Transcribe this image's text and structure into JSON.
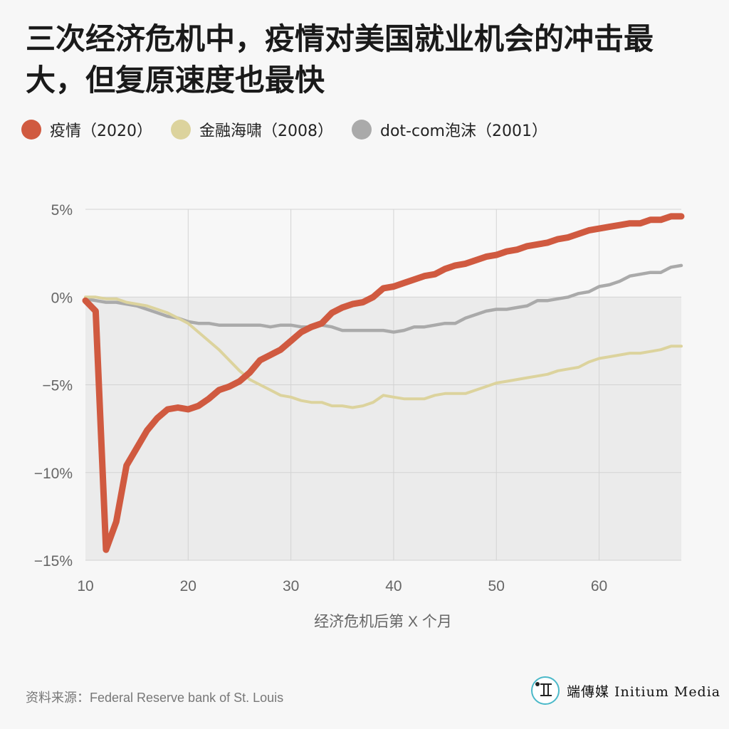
{
  "title": "三次经济危机中，疫情对美国就业机会的冲击最大，但复原速度也最快",
  "source": "资料来源：Federal Reserve bank of St. Louis",
  "logo": {
    "text": "端傳媒 Initium Media"
  },
  "chart_data": {
    "type": "line",
    "xlabel": "经济危机后第 X 个月",
    "ylabel": "",
    "xlim": [
      10,
      68
    ],
    "ylim": [
      -15,
      5
    ],
    "x_ticks": [
      "10",
      "20",
      "30",
      "40",
      "50",
      "60"
    ],
    "y_ticks": [
      "5%",
      "0%",
      "-5%",
      "-10%",
      "-15%"
    ],
    "grid": true,
    "legend_position": "top",
    "series": [
      {
        "name": "疫情（2020）",
        "color": "#d05a40",
        "x": [
          10,
          11,
          12,
          13,
          14,
          15,
          16,
          17,
          18,
          19,
          20,
          21,
          22,
          23,
          24,
          25,
          26,
          27,
          28,
          29,
          30,
          31,
          32,
          33,
          34,
          35,
          36,
          37,
          38,
          39,
          40,
          41,
          42,
          43,
          44,
          45,
          46,
          47,
          48,
          49,
          50,
          51,
          52,
          53,
          54,
          55,
          56,
          57,
          58,
          59,
          60,
          61,
          62,
          63,
          64,
          65,
          66,
          67,
          68
        ],
        "values": [
          -0.2,
          -0.8,
          -14.4,
          -12.8,
          -9.6,
          -8.6,
          -7.6,
          -6.9,
          -6.4,
          -6.3,
          -6.4,
          -6.2,
          -5.8,
          -5.3,
          -5.1,
          -4.8,
          -4.3,
          -3.6,
          -3.3,
          -3.0,
          -2.5,
          -2.0,
          -1.7,
          -1.5,
          -0.9,
          -0.6,
          -0.4,
          -0.3,
          0.0,
          0.5,
          0.6,
          0.8,
          1.0,
          1.2,
          1.3,
          1.6,
          1.8,
          1.9,
          2.1,
          2.3,
          2.4,
          2.6,
          2.7,
          2.9,
          3.0,
          3.1,
          3.3,
          3.4,
          3.6,
          3.8,
          3.9,
          4.0,
          4.1,
          4.2,
          4.2,
          4.4,
          4.4,
          4.6,
          4.6
        ]
      },
      {
        "name": "金融海啸（2008）",
        "color": "#dcd39d",
        "x": [
          10,
          11,
          12,
          13,
          14,
          15,
          16,
          17,
          18,
          19,
          20,
          21,
          22,
          23,
          24,
          25,
          26,
          27,
          28,
          29,
          30,
          31,
          32,
          33,
          34,
          35,
          36,
          37,
          38,
          39,
          40,
          41,
          42,
          43,
          44,
          45,
          46,
          47,
          48,
          49,
          50,
          51,
          52,
          53,
          54,
          55,
          56,
          57,
          58,
          59,
          60,
          61,
          62,
          63,
          64,
          65,
          66,
          67,
          68
        ],
        "values": [
          0.0,
          0.0,
          -0.1,
          -0.1,
          -0.3,
          -0.4,
          -0.5,
          -0.7,
          -0.9,
          -1.2,
          -1.5,
          -2.0,
          -2.5,
          -3.0,
          -3.6,
          -4.2,
          -4.7,
          -5.0,
          -5.3,
          -5.6,
          -5.7,
          -5.9,
          -6.0,
          -6.0,
          -6.2,
          -6.2,
          -6.3,
          -6.2,
          -6.0,
          -5.6,
          -5.7,
          -5.8,
          -5.8,
          -5.8,
          -5.6,
          -5.5,
          -5.5,
          -5.5,
          -5.3,
          -5.1,
          -4.9,
          -4.8,
          -4.7,
          -4.6,
          -4.5,
          -4.4,
          -4.2,
          -4.1,
          -4.0,
          -3.7,
          -3.5,
          -3.4,
          -3.3,
          -3.2,
          -3.2,
          -3.1,
          -3.0,
          -2.8,
          -2.8
        ]
      },
      {
        "name": "dot-com泡沫（2001）",
        "color": "#aaaaaa",
        "x": [
          10,
          11,
          12,
          13,
          14,
          15,
          16,
          17,
          18,
          19,
          20,
          21,
          22,
          23,
          24,
          25,
          26,
          27,
          28,
          29,
          30,
          31,
          32,
          33,
          34,
          35,
          36,
          37,
          38,
          39,
          40,
          41,
          42,
          43,
          44,
          45,
          46,
          47,
          48,
          49,
          50,
          51,
          52,
          53,
          54,
          55,
          56,
          57,
          58,
          59,
          60,
          61,
          62,
          63,
          64,
          65,
          66,
          67,
          68
        ],
        "values": [
          -0.1,
          -0.2,
          -0.3,
          -0.3,
          -0.4,
          -0.5,
          -0.7,
          -0.9,
          -1.1,
          -1.2,
          -1.4,
          -1.5,
          -1.5,
          -1.6,
          -1.6,
          -1.6,
          -1.6,
          -1.6,
          -1.7,
          -1.6,
          -1.6,
          -1.7,
          -1.7,
          -1.6,
          -1.7,
          -1.9,
          -1.9,
          -1.9,
          -1.9,
          -1.9,
          -2.0,
          -1.9,
          -1.7,
          -1.7,
          -1.6,
          -1.5,
          -1.5,
          -1.2,
          -1.0,
          -0.8,
          -0.7,
          -0.7,
          -0.6,
          -0.5,
          -0.2,
          -0.2,
          -0.1,
          0.0,
          0.2,
          0.3,
          0.6,
          0.7,
          0.9,
          1.2,
          1.3,
          1.4,
          1.4,
          1.7,
          1.8
        ]
      }
    ]
  }
}
